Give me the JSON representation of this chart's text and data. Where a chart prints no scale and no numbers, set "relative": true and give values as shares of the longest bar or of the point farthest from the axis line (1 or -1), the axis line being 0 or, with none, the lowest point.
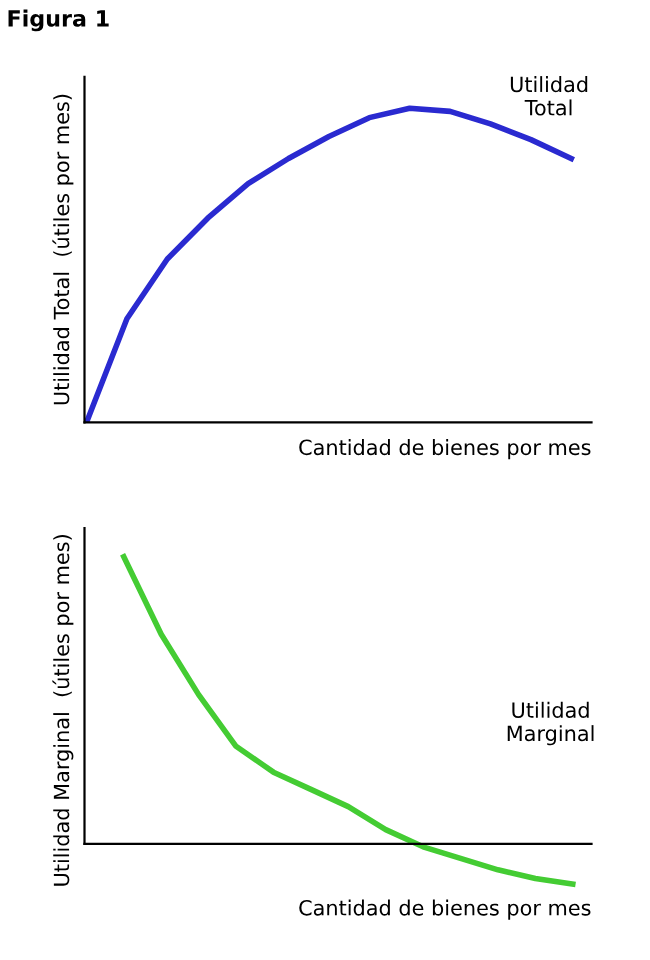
{
  "chart_data": [
    {
      "type": "line",
      "title": "Figura 1",
      "xlabel": "Cantidad de bienes por mes",
      "ylabel": "Utilidad Total  (útiles por mes)",
      "relative": true,
      "legend": false,
      "marker": "none",
      "line_style": "solid",
      "categories": [
        null,
        null,
        null,
        null,
        null,
        null,
        null,
        null,
        null,
        null,
        null,
        null,
        null
      ],
      "series": [
        {
          "name": "Utilidad\nTotal",
          "color": "#2a2ad0",
          "values": [
            0,
            0.33,
            0.52,
            0.65,
            0.76,
            0.84,
            0.91,
            0.97,
            1.0,
            0.99,
            0.95,
            0.9,
            0.84
          ]
        }
      ]
    },
    {
      "type": "line",
      "xlabel": "Cantidad de bienes por mes",
      "ylabel": "Utilidad Marginal  (útiles por mes)",
      "relative": true,
      "legend": false,
      "marker": "none",
      "line_style": "solid",
      "categories": [
        null,
        null,
        null,
        null,
        null,
        null,
        null,
        null,
        null,
        null,
        null,
        null,
        null,
        null
      ],
      "series": [
        {
          "name": "Utilidad\nMarginal",
          "color": "#44cc33",
          "values": [
            null,
            1.0,
            0.73,
            0.52,
            0.34,
            0.25,
            0.19,
            0.13,
            0.05,
            -0.01,
            -0.05,
            -0.09,
            -0.12,
            -0.14
          ]
        }
      ]
    }
  ]
}
